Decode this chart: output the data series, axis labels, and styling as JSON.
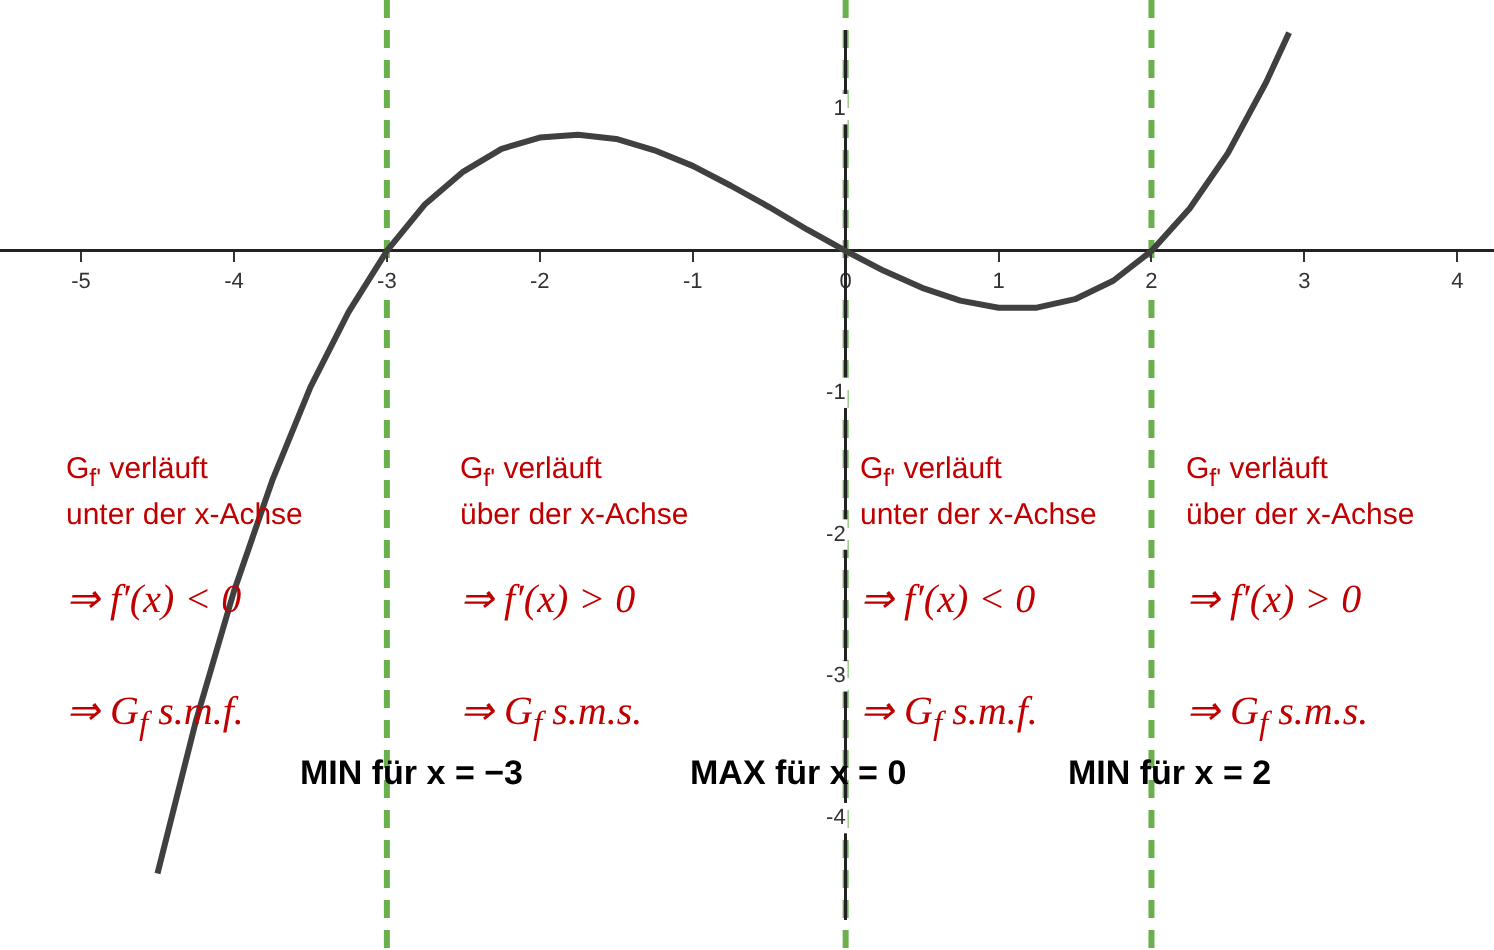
{
  "chart_data": {
    "type": "line",
    "x": [
      -4.5,
      -4.25,
      -4,
      -3.75,
      -3.5,
      -3.25,
      -3,
      -2.75,
      -2.5,
      -2.25,
      -2,
      -1.75,
      -1.5,
      -1.25,
      -1,
      -0.75,
      -0.5,
      -0.25,
      0,
      0.25,
      0.5,
      0.75,
      1,
      1.25,
      1.5,
      1.75,
      2,
      2.25,
      2.5,
      2.75,
      2.9
    ],
    "series": [
      {
        "color": "#404040",
        "values": [
          -4.39,
          -3.32,
          -2.4,
          -1.62,
          -0.96,
          -0.43,
          0,
          0.33,
          0.56,
          0.72,
          0.8,
          0.82,
          0.79,
          0.71,
          0.6,
          0.46,
          0.31,
          0.15,
          0,
          -0.14,
          -0.26,
          -0.35,
          -0.4,
          -0.4,
          -0.34,
          -0.21,
          0,
          0.3,
          0.69,
          1.19,
          1.54
        ]
      }
    ],
    "xlim": [
      -5.53,
      4.24
    ],
    "ylim": [
      -4.71,
      1.55
    ],
    "xticks": [
      -5,
      -4,
      -3,
      -2,
      -1,
      0,
      1,
      2,
      3,
      4
    ],
    "yticks": [
      -4,
      -3,
      -2,
      -1,
      {
        "value": 0,
        "label": null
      },
      1
    ],
    "grid": false,
    "legend": false,
    "ref_lines": [
      {
        "axis": "x",
        "value": -3,
        "color": "#6ab04c",
        "line_style": "dashed"
      },
      {
        "axis": "x",
        "value": 0,
        "color": "#6ab04c",
        "line_style": "dashed"
      },
      {
        "axis": "x",
        "value": 2,
        "color": "#6ab04c",
        "line_style": "dashed"
      }
    ],
    "annotations": [
      "G$_{f'}$ verläuft",
      "unter der x-Achse",
      "⇒ f′(x) < 0",
      "⇒ G$_{f}$ s.m.f.",
      "G$_{f'}$ verläuft",
      "über der x-Achse",
      "⇒ f′(x) > 0",
      "⇒ G$_{f}$ s.m.s.",
      "G$_{f'}$ verläuft",
      "unter der x-Achse",
      "⇒ f′(x) < 0",
      "⇒ G$_{f}$ s.m.f.",
      "G$_{f'}$ verläuft",
      "über der x-Achse",
      "⇒ f′(x) > 0",
      "⇒ G$_{f}$ s.m.s.",
      "MIN für x = −3",
      "MAX für x = 0",
      "MIN für x = 2"
    ]
  }
}
